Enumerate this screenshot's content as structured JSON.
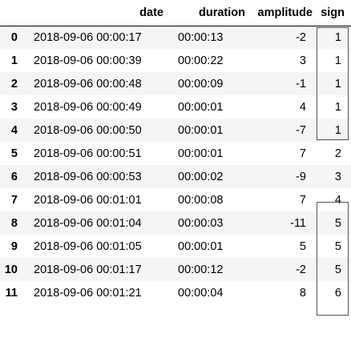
{
  "table": {
    "columns": [
      "date",
      "duration",
      "amplitude",
      "sign"
    ],
    "rows": [
      {
        "index": "0",
        "date": "2018-09-06 00:00:17",
        "duration": "00:00:13",
        "amplitude": "-2",
        "sign": "1"
      },
      {
        "index": "1",
        "date": "2018-09-06 00:00:39",
        "duration": "00:00:22",
        "amplitude": "3",
        "sign": "1"
      },
      {
        "index": "2",
        "date": "2018-09-06 00:00:48",
        "duration": "00:00:09",
        "amplitude": "-1",
        "sign": "1"
      },
      {
        "index": "3",
        "date": "2018-09-06 00:00:49",
        "duration": "00:00:01",
        "amplitude": "4",
        "sign": "1"
      },
      {
        "index": "4",
        "date": "2018-09-06 00:00:50",
        "duration": "00:00:01",
        "amplitude": "-7",
        "sign": "1"
      },
      {
        "index": "5",
        "date": "2018-09-06 00:00:51",
        "duration": "00:00:01",
        "amplitude": "7",
        "sign": "2"
      },
      {
        "index": "6",
        "date": "2018-09-06 00:00:53",
        "duration": "00:00:02",
        "amplitude": "-9",
        "sign": "3"
      },
      {
        "index": "7",
        "date": "2018-09-06 00:01:01",
        "duration": "00:00:08",
        "amplitude": "7",
        "sign": "4"
      },
      {
        "index": "8",
        "date": "2018-09-06 00:01:04",
        "duration": "00:00:03",
        "amplitude": "-11",
        "sign": "5"
      },
      {
        "index": "9",
        "date": "2018-09-06 00:01:05",
        "duration": "00:00:01",
        "amplitude": "5",
        "sign": "5"
      },
      {
        "index": "10",
        "date": "2018-09-06 00:01:17",
        "duration": "00:00:12",
        "amplitude": "-2",
        "sign": "5"
      },
      {
        "index": "11",
        "date": "2018-09-06 00:01:21",
        "duration": "00:00:04",
        "amplitude": "8",
        "sign": "6"
      }
    ]
  }
}
